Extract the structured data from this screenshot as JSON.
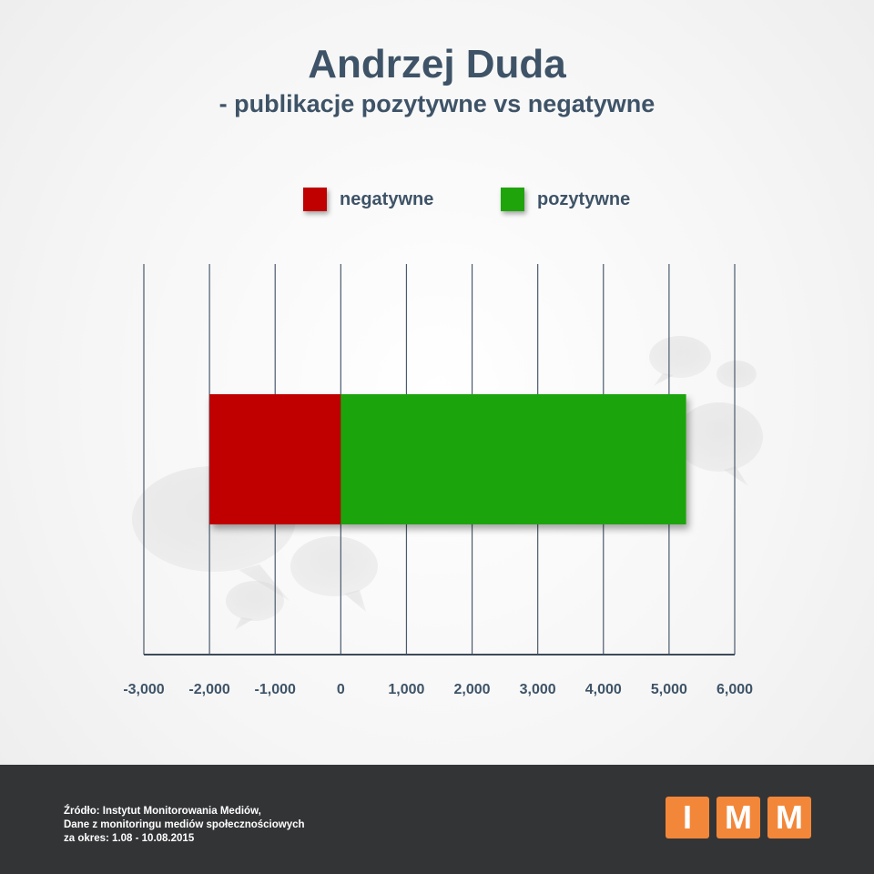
{
  "title": "Andrzej Duda",
  "subtitle": "- publikacje pozytywne vs negatywne",
  "legend": [
    {
      "label": "negatywne",
      "color": "#c00000"
    },
    {
      "label": "pozytywne",
      "color": "#1fa40b"
    }
  ],
  "chart_data": {
    "type": "bar",
    "orientation": "horizontal",
    "stacked": true,
    "categories": [
      ""
    ],
    "series": [
      {
        "name": "negatywne",
        "values": [
          -2000
        ],
        "color": "#c00000"
      },
      {
        "name": "pozytywne",
        "values": [
          5260
        ],
        "color": "#1fa40b"
      }
    ],
    "xlim": [
      -3000,
      6000
    ],
    "x_ticks": [
      -3000,
      -2000,
      -1000,
      0,
      1000,
      2000,
      3000,
      4000,
      5000,
      6000
    ],
    "x_tick_labels": [
      "-3,000",
      "-2,000",
      "-1,000",
      "0",
      "1,000",
      "2,000",
      "3,000",
      "4,000",
      "5,000",
      "6,000"
    ],
    "grid": true,
    "legend_position": "top"
  },
  "footer": {
    "source_lines": [
      "Źródło: Instytut Monitorowania Mediów,",
      "Dane z monitoringu mediów społecznościowych",
      "za okres: 1.08 - 10.08.2015"
    ],
    "logo_letters": [
      "I",
      "M",
      "M"
    ],
    "logo_color": "#f2873a",
    "background_color": "#333436"
  }
}
